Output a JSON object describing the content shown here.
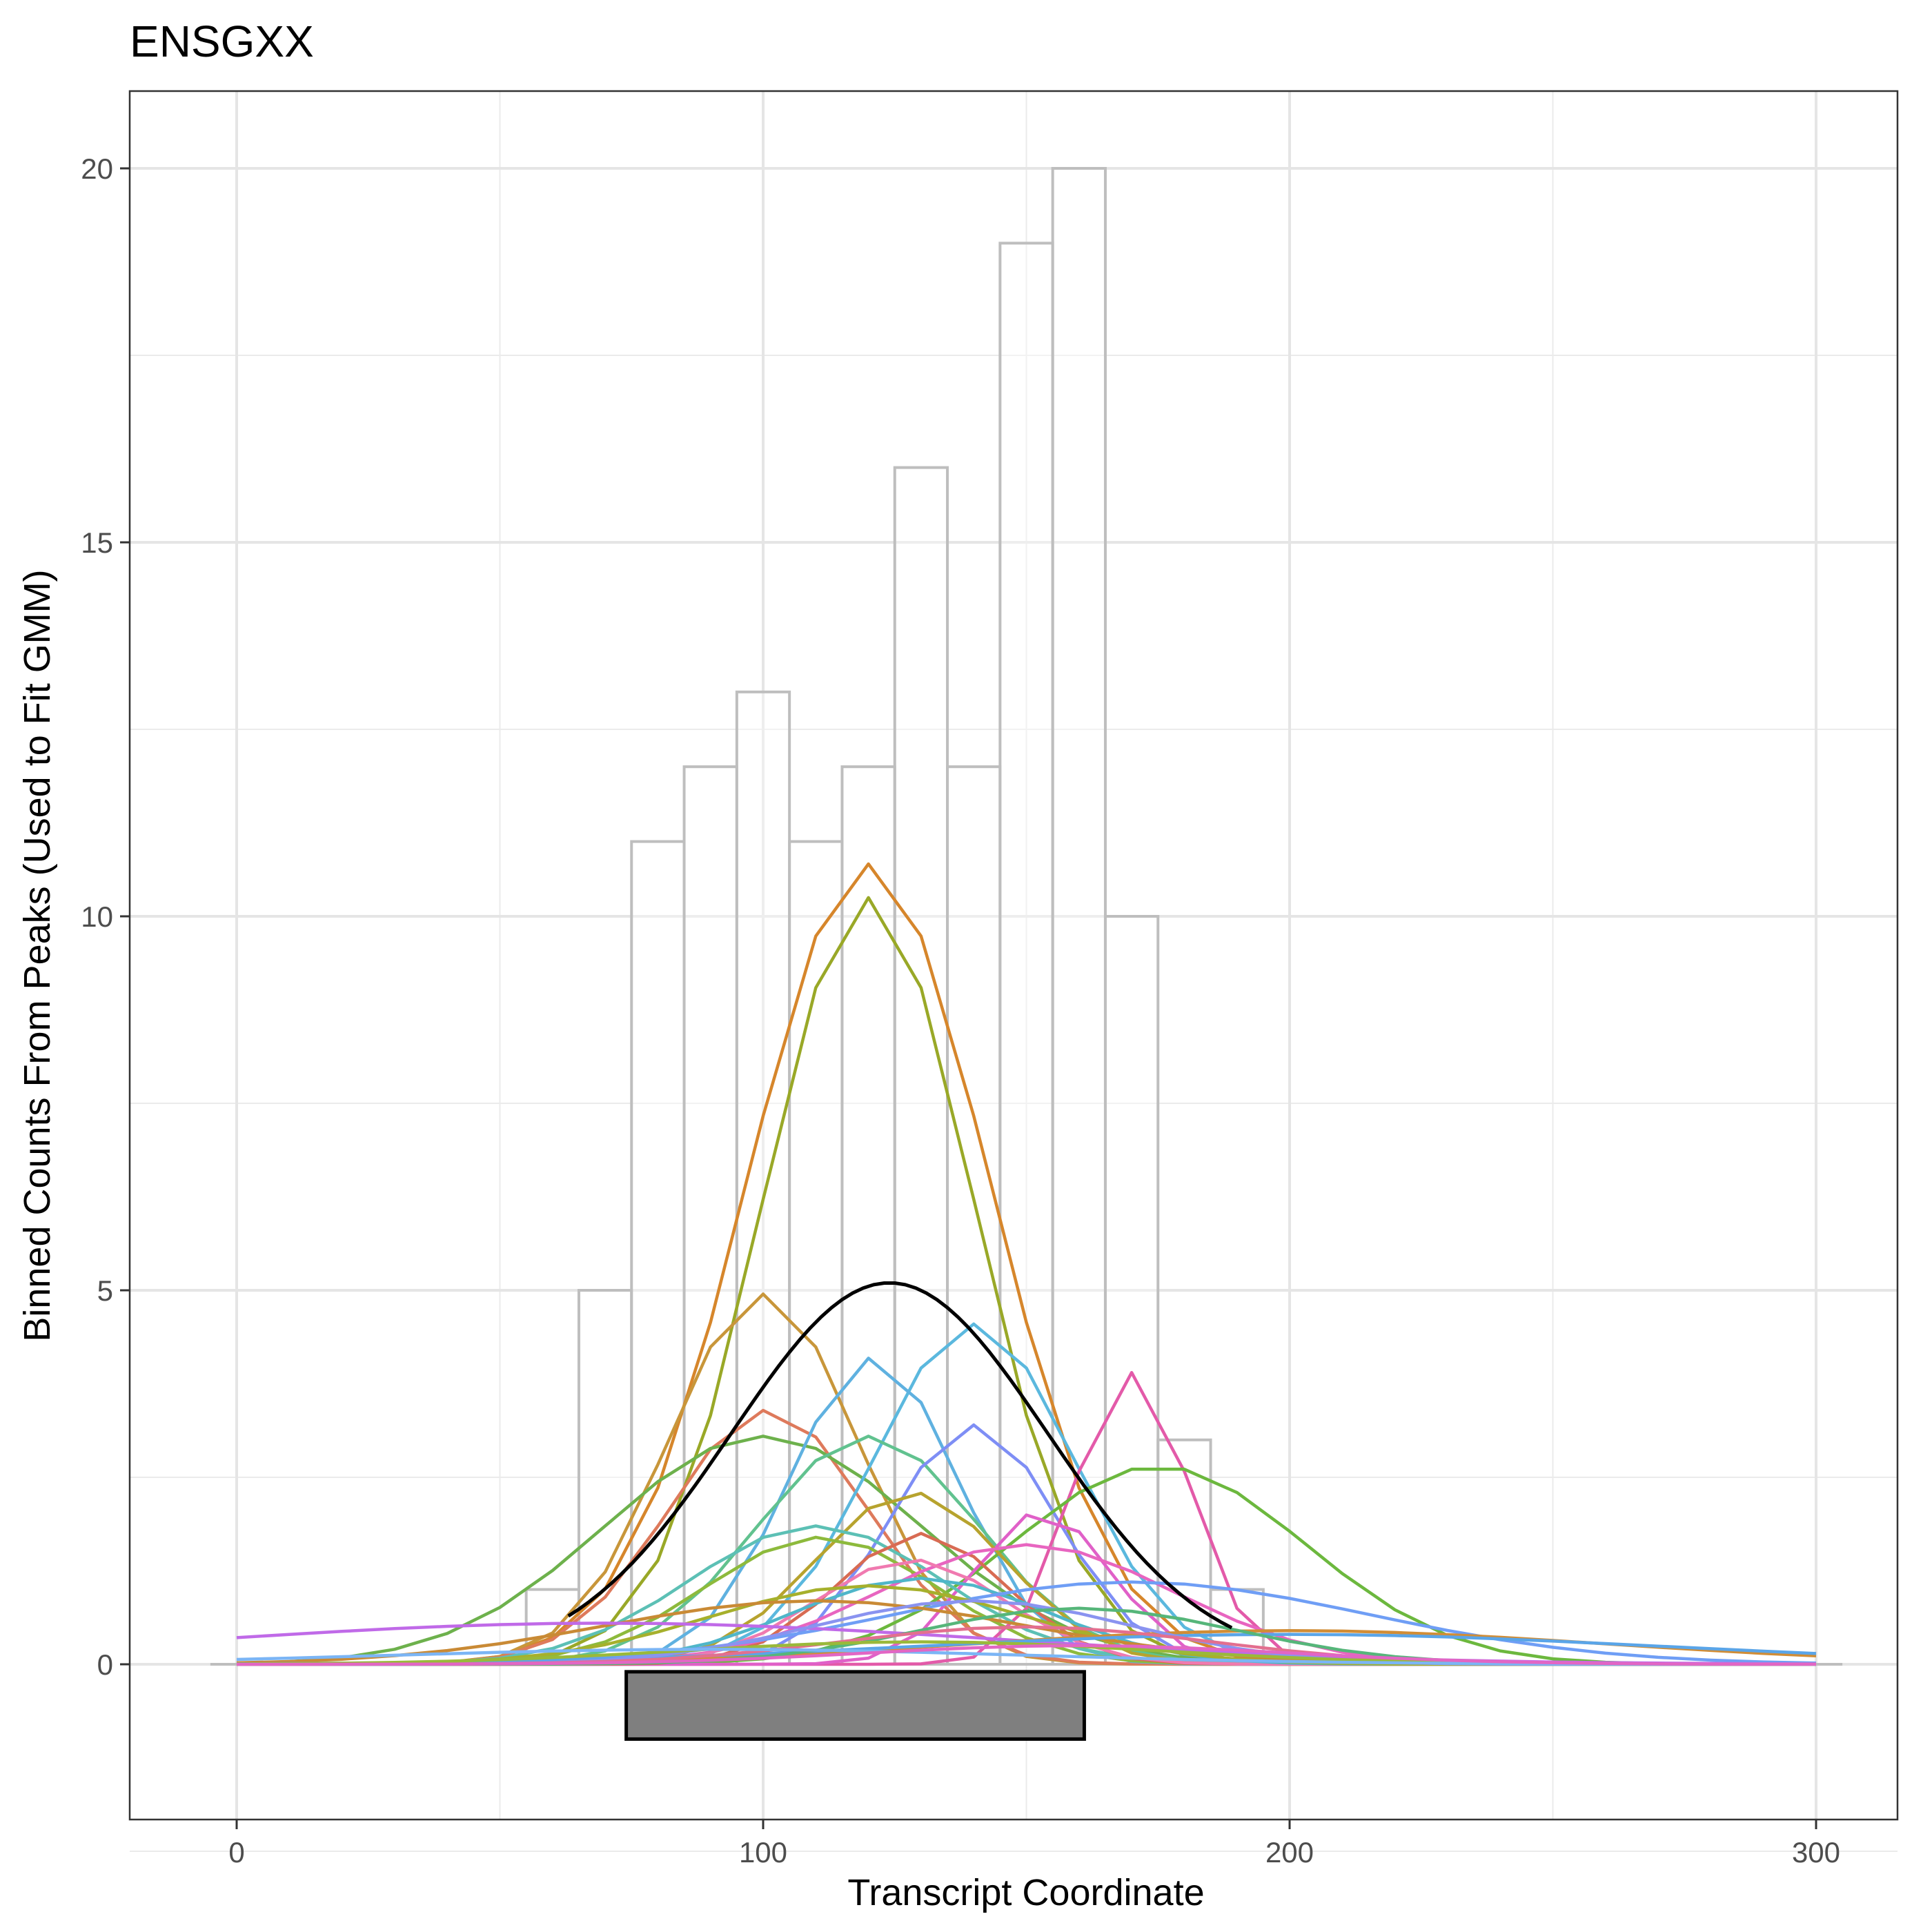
{
  "chart_data": {
    "type": "line",
    "title": "ENSGXX",
    "xlabel": "Transcript Coordinate",
    "ylabel": "Binned Counts From Peaks (Used to Fit GMM)",
    "xlim": [
      -20,
      310
    ],
    "ylim": [
      -2,
      21
    ],
    "xticks": [
      0,
      100,
      200,
      300
    ],
    "yticks": [
      0,
      5,
      10,
      15,
      20
    ],
    "x_tick_labels": [
      "0",
      "100",
      "200",
      "300"
    ],
    "y_tick_labels": [
      "0",
      "5",
      "10",
      "15",
      "20"
    ],
    "grid": true,
    "legend": "none",
    "histogram": {
      "bin_width": 10,
      "bins": [
        {
          "x0": 55,
          "x1": 65,
          "count": 1
        },
        {
          "x0": 65,
          "x1": 75,
          "count": 5
        },
        {
          "x0": 75,
          "x1": 85,
          "count": 11
        },
        {
          "x0": 85,
          "x1": 95,
          "count": 12
        },
        {
          "x0": 95,
          "x1": 105,
          "count": 13
        },
        {
          "x0": 105,
          "x1": 115,
          "count": 11
        },
        {
          "x0": 115,
          "x1": 125,
          "count": 12
        },
        {
          "x0": 125,
          "x1": 135,
          "count": 16
        },
        {
          "x0": 135,
          "x1": 145,
          "count": 12
        },
        {
          "x0": 145,
          "x1": 155,
          "count": 19
        },
        {
          "x0": 155,
          "x1": 165,
          "count": 20
        },
        {
          "x0": 165,
          "x1": 175,
          "count": 10
        },
        {
          "x0": 175,
          "x1": 185,
          "count": 3
        },
        {
          "x0": 185,
          "x1": 195,
          "count": 1
        }
      ],
      "baseline_x": [
        -5,
        305
      ]
    },
    "peak_box": {
      "x0": 74,
      "x1": 161,
      "y0": -1.0,
      "y1": -0.1
    },
    "mean_curve": {
      "mu": 124,
      "sigma": 30,
      "peak": 5.1,
      "x_start": 63,
      "x_end": 190,
      "color": "#000000"
    },
    "series": [
      {
        "color": "#d6862b",
        "mu": 120,
        "sigma": 23,
        "peak": 10.7
      },
      {
        "color": "#99a827",
        "mu": 120,
        "sigma": 20,
        "peak": 10.25
      },
      {
        "color": "#c8963a",
        "mu": 100,
        "sigma": 18,
        "peak": 4.95
      },
      {
        "color": "#de7a5c",
        "mu": 101,
        "sigma": 19,
        "peak": 3.4
      },
      {
        "color": "#6db14c",
        "mu": 100,
        "sigma": 30,
        "peak": 3.05
      },
      {
        "color": "#5bb8de",
        "mu": 140,
        "sigma": 19,
        "peak": 4.55
      },
      {
        "color": "#5fb1e0",
        "mu": 121,
        "sigma": 16,
        "peak": 4.1
      },
      {
        "color": "#61c28f",
        "mu": 120,
        "sigma": 21,
        "peak": 3.05
      },
      {
        "color": "#7e8ef5",
        "mu": 140,
        "sigma": 16,
        "peak": 3.2
      },
      {
        "color": "#e35aa9",
        "mu": 170,
        "sigma": 11,
        "peak": 3.9
      },
      {
        "color": "#6cb83e",
        "mu": 175,
        "sigma": 28,
        "peak": 2.65
      },
      {
        "color": "#e060c8",
        "mu": 153,
        "sigma": 13,
        "peak": 2.05
      },
      {
        "color": "#b7a32e",
        "mu": 128,
        "sigma": 18,
        "peak": 2.3
      },
      {
        "color": "#5cc0b5",
        "mu": 110,
        "sigma": 24,
        "peak": 1.85
      },
      {
        "color": "#8dba3c",
        "mu": 111,
        "sigma": 22,
        "peak": 1.7
      },
      {
        "color": "#d86b53",
        "mu": 130,
        "sigma": 16,
        "peak": 1.75
      },
      {
        "color": "#e865c0",
        "mu": 150,
        "sigma": 28,
        "peak": 1.6
      },
      {
        "color": "#f07ab0",
        "mu": 128,
        "sigma": 18,
        "peak": 1.4
      },
      {
        "color": "#4fb6c9",
        "mu": 130,
        "sigma": 24,
        "peak": 1.15
      },
      {
        "color": "#6f9ef5",
        "mu": 170,
        "sigma": 45,
        "peak": 1.1
      },
      {
        "color": "#a6b02c",
        "mu": 120,
        "sigma": 30,
        "peak": 1.05
      },
      {
        "color": "#c98a35",
        "mu": 110,
        "sigma": 40,
        "peak": 0.85
      },
      {
        "color": "#c06ae8",
        "mu": 70,
        "sigma": 75,
        "peak": 0.55
      },
      {
        "color": "#d18d36",
        "mu": 200,
        "sigma": 60,
        "peak": 0.45
      },
      {
        "color": "#5aa5e8",
        "mu": 200,
        "sigma": 70,
        "peak": 0.4
      },
      {
        "color": "#8a93f0",
        "mu": 140,
        "sigma": 30,
        "peak": 0.85
      },
      {
        "color": "#56b67a",
        "mu": 160,
        "sigma": 30,
        "peak": 0.75
      },
      {
        "color": "#e36f8f",
        "mu": 150,
        "sigma": 35,
        "peak": 0.5
      },
      {
        "color": "#9ab93a",
        "mu": 130,
        "sigma": 45,
        "peak": 0.3
      },
      {
        "color": "#7bb5f5",
        "mu": 90,
        "sigma": 60,
        "peak": 0.2
      },
      {
        "color": "#e266c4",
        "mu": 160,
        "sigma": 40,
        "peak": 0.25
      }
    ]
  }
}
